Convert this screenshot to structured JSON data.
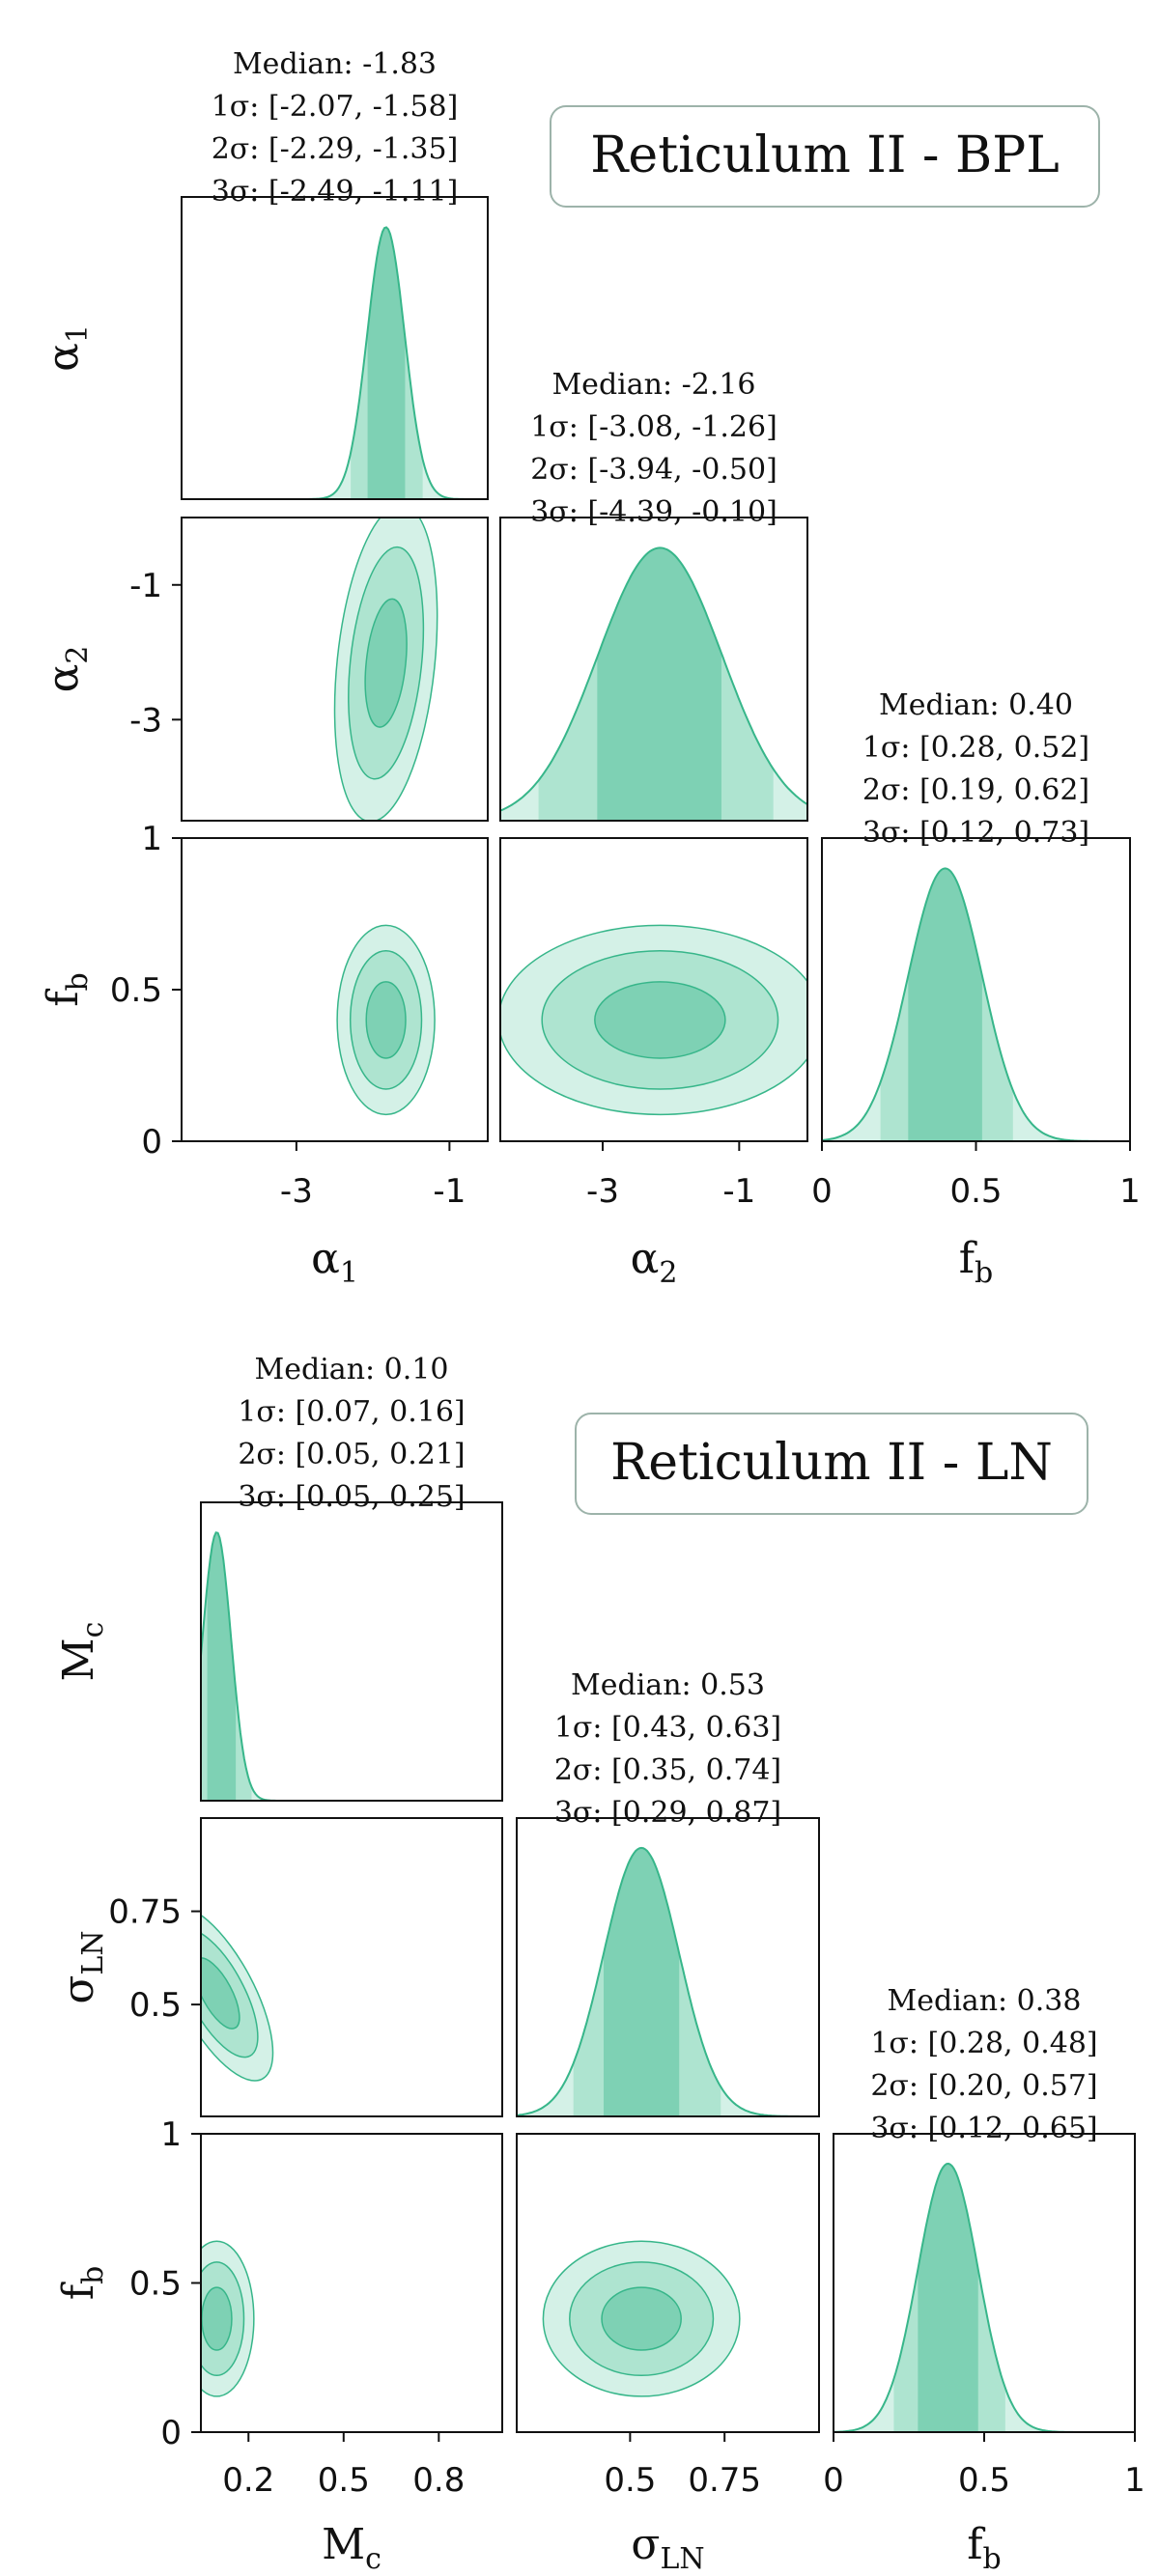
{
  "colors": {
    "c1": "#7ed1b4",
    "c2": "#aee4d0",
    "c3": "#d4f1e7",
    "line": "#37b68a",
    "frame": "#111111",
    "titlebox": "#9db3aa"
  },
  "chart_data": [
    {
      "type": "corner",
      "title": "Reticulum II - BPL",
      "params": [
        {
          "key": "alpha1",
          "base": "α",
          "sub": "1",
          "range": [
            -4.5,
            -0.5
          ],
          "ticks": [
            -3,
            -1
          ],
          "tick_labels": [
            "-3",
            "-1"
          ],
          "stats": {
            "median": "Median: -1.83",
            "s1": "1σ: [-2.07, -1.58]",
            "s2": "2σ: [-2.29, -1.35]",
            "s3": "3σ: [-2.49, -1.11]"
          },
          "median": -1.83,
          "sig1": [
            -2.07,
            -1.58
          ],
          "sig2": [
            -2.29,
            -1.35
          ],
          "sig3": [
            -2.49,
            -1.11
          ]
        },
        {
          "key": "alpha2",
          "base": "α",
          "sub": "2",
          "range": [
            -4.5,
            0
          ],
          "ticks": [
            -3,
            -1
          ],
          "tick_labels": [
            "-3",
            "-1"
          ],
          "stats": {
            "median": "Median: -2.16",
            "s1": "1σ: [-3.08, -1.26]",
            "s2": "2σ: [-3.94, -0.50]",
            "s3": "3σ: [-4.39, -0.10]"
          },
          "median": -2.16,
          "sig1": [
            -3.08,
            -1.26
          ],
          "sig2": [
            -3.94,
            -0.5
          ],
          "sig3": [
            -4.39,
            -0.1
          ]
        },
        {
          "key": "fb",
          "base": "f",
          "sub": "b",
          "range": [
            0,
            1
          ],
          "ticks": [
            0,
            0.5,
            1
          ],
          "tick_labels": [
            "0",
            "0.5",
            "1"
          ],
          "stats": {
            "median": "Median: 0.40",
            "s1": "1σ: [0.28, 0.52]",
            "s2": "2σ: [0.19, 0.62]",
            "s3": "3σ: [0.12, 0.73]"
          },
          "median": 0.4,
          "sig1": [
            0.28,
            0.52
          ],
          "sig2": [
            0.19,
            0.62
          ],
          "sig3": [
            0.12,
            0.73
          ]
        }
      ]
    },
    {
      "type": "corner",
      "title": "Reticulum II - LN",
      "params": [
        {
          "key": "Mc",
          "base": "M",
          "sub": "c",
          "range": [
            0.05,
            1.0
          ],
          "ticks": [
            0.2,
            0.5,
            0.8
          ],
          "tick_labels": [
            "0.2",
            "0.5",
            "0.8"
          ],
          "stats": {
            "median": "Median: 0.10",
            "s1": "1σ: [0.07, 0.16]",
            "s2": "2σ: [0.05, 0.21]",
            "s3": "3σ: [0.05, 0.25]"
          },
          "median": 0.1,
          "sig1": [
            0.07,
            0.16
          ],
          "sig2": [
            0.05,
            0.21
          ],
          "sig3": [
            0.05,
            0.25
          ]
        },
        {
          "key": "sigmaLN",
          "base": "σ",
          "sub": "LN",
          "range": [
            0.2,
            1.0
          ],
          "ticks": [
            0.5,
            0.75
          ],
          "tick_labels": [
            "0.5",
            "0.75"
          ],
          "stats": {
            "median": "Median: 0.53",
            "s1": "1σ: [0.43, 0.63]",
            "s2": "2σ: [0.35, 0.74]",
            "s3": "3σ: [0.29, 0.87]"
          },
          "median": 0.53,
          "sig1": [
            0.43,
            0.63
          ],
          "sig2": [
            0.35,
            0.74
          ],
          "sig3": [
            0.29,
            0.87
          ]
        },
        {
          "key": "fb",
          "base": "f",
          "sub": "b",
          "range": [
            0,
            1
          ],
          "ticks": [
            0,
            0.5,
            1
          ],
          "tick_labels": [
            "0",
            "0.5",
            "1"
          ],
          "stats": {
            "median": "Median: 0.38",
            "s1": "1σ: [0.28, 0.48]",
            "s2": "2σ: [0.20, 0.57]",
            "s3": "3σ: [0.12, 0.65]"
          },
          "median": 0.38,
          "sig1": [
            0.28,
            0.48
          ],
          "sig2": [
            0.2,
            0.57
          ],
          "sig3": [
            0.12,
            0.65
          ]
        }
      ]
    }
  ]
}
